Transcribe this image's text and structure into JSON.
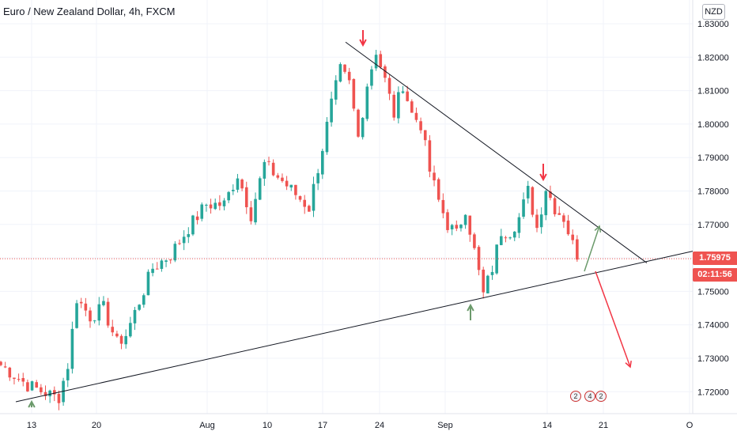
{
  "header": {
    "symbol_title": "Euro / New Zealand Dollar, 4h, FXCM",
    "currency_label": "NZD"
  },
  "price_axis": {
    "last_price": "1.75975",
    "countdown": "02:11:56"
  },
  "event_badges": [
    "2",
    "4",
    "2"
  ],
  "colors": {
    "up": "#26a69a",
    "down": "#ef5350",
    "trendline": "#131722",
    "arrow_down": "#f23645",
    "arrow_up": "#6b9a6b",
    "last_price_line": "#ef5350"
  },
  "chart_data": {
    "type": "candlestick",
    "title": "Euro / New Zealand Dollar, 4h, FXCM",
    "ylim": [
      1.7155,
      1.8315
    ],
    "y_ticks": [
      "1.83000",
      "1.82000",
      "1.81000",
      "1.80000",
      "1.79000",
      "1.78000",
      "1.77000",
      "1.76000",
      "1.75000",
      "1.74000",
      "1.73000",
      "1.72000"
    ],
    "x_ticks": [
      "13",
      "20",
      "Aug",
      "10",
      "17",
      "24",
      "Sep",
      "14",
      "21",
      "O"
    ],
    "grid": true,
    "last_price": 1.75975,
    "price_path": [
      [
        0,
        1.728
      ],
      [
        6,
        1.722
      ],
      [
        12,
        1.7185
      ],
      [
        13,
        1.7185
      ],
      [
        15,
        1.728
      ],
      [
        17,
        1.748
      ],
      [
        20,
        1.7425
      ],
      [
        23,
        1.745
      ],
      [
        26,
        1.7345
      ],
      [
        28,
        1.737
      ],
      [
        34,
        1.757
      ],
      [
        38,
        1.761
      ],
      [
        42,
        1.769
      ],
      [
        46,
        1.776
      ],
      [
        50,
        1.776
      ],
      [
        53,
        1.785
      ],
      [
        56,
        1.773
      ],
      [
        59,
        1.788
      ],
      [
        63,
        1.783
      ],
      [
        66,
        1.779
      ],
      [
        69,
        1.775
      ],
      [
        72,
        1.793
      ],
      [
        74,
        1.806
      ],
      [
        76,
        1.816
      ],
      [
        78,
        1.812
      ],
      [
        80,
        1.796
      ],
      [
        82,
        1.812
      ],
      [
        84,
        1.822
      ],
      [
        86,
        1.813
      ],
      [
        88,
        1.803
      ],
      [
        90,
        1.812
      ],
      [
        92,
        1.803
      ],
      [
        94,
        1.8
      ],
      [
        96,
        1.786
      ],
      [
        98,
        1.777
      ],
      [
        100,
        1.77
      ],
      [
        102,
        1.767
      ],
      [
        104,
        1.775
      ],
      [
        106,
        1.762
      ],
      [
        108,
        1.749
      ],
      [
        110,
        1.757
      ],
      [
        112,
        1.768
      ],
      [
        114,
        1.768
      ],
      [
        116,
        1.772
      ],
      [
        118,
        1.78
      ],
      [
        120,
        1.769
      ],
      [
        122,
        1.781
      ],
      [
        124,
        1.775
      ],
      [
        126,
        1.772
      ],
      [
        128,
        1.764
      ],
      [
        129,
        1.7595
      ]
    ],
    "annotations": {
      "upper_trendline": [
        [
          1,
          1.8245
        ],
        [
          3,
          1.7585
        ]
      ],
      "lower_trendline": [
        [
          0,
          1.717
        ],
        [
          2,
          1.762
        ]
      ],
      "markers": [
        {
          "type": "arrow-down",
          "color": "red"
        },
        {
          "type": "arrow-down",
          "color": "red"
        },
        {
          "type": "arrow-up",
          "color": "green"
        }
      ],
      "projections": [
        {
          "type": "arrow-up",
          "color": "green"
        },
        {
          "type": "arrow-down",
          "color": "red"
        }
      ]
    }
  }
}
